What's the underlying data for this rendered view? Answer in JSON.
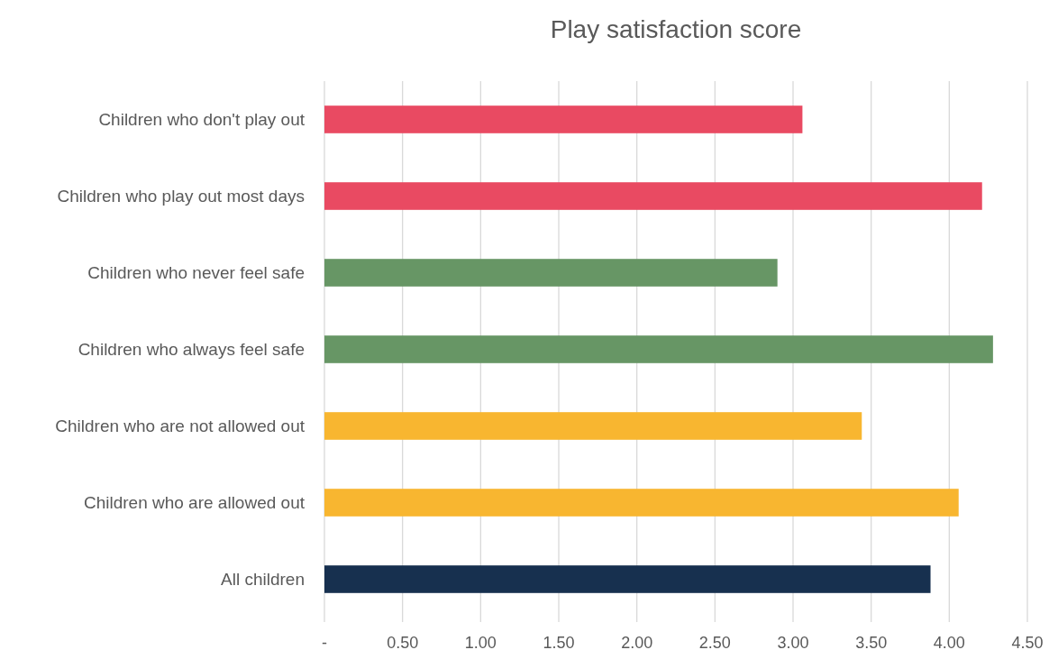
{
  "chart_data": {
    "type": "bar",
    "orientation": "horizontal",
    "title": "Play satisfaction score",
    "categories": [
      "Children who don't play out",
      "Children who play out most days",
      "Children who never feel safe",
      "Children who always feel safe",
      "Children who are not allowed out",
      "Children who are allowed out",
      "All children"
    ],
    "values": [
      3.06,
      4.21,
      2.9,
      4.28,
      3.44,
      4.06,
      3.88
    ],
    "colors": [
      "#e94a62",
      "#e94a62",
      "#679665",
      "#679665",
      "#f8b630",
      "#f8b630",
      "#17304f"
    ],
    "xlim": [
      0,
      4.5
    ],
    "xticks": [
      {
        "value": 0,
        "label": "-"
      },
      {
        "value": 0.5,
        "label": "0.50"
      },
      {
        "value": 1,
        "label": "1.00"
      },
      {
        "value": 1.5,
        "label": "1.50"
      },
      {
        "value": 2,
        "label": "2.00"
      },
      {
        "value": 2.5,
        "label": "2.50"
      },
      {
        "value": 3,
        "label": "3.00"
      },
      {
        "value": 3.5,
        "label": "3.50"
      },
      {
        "value": 4,
        "label": "4.00"
      },
      {
        "value": 4.5,
        "label": "4.50"
      }
    ],
    "grid": "x"
  }
}
